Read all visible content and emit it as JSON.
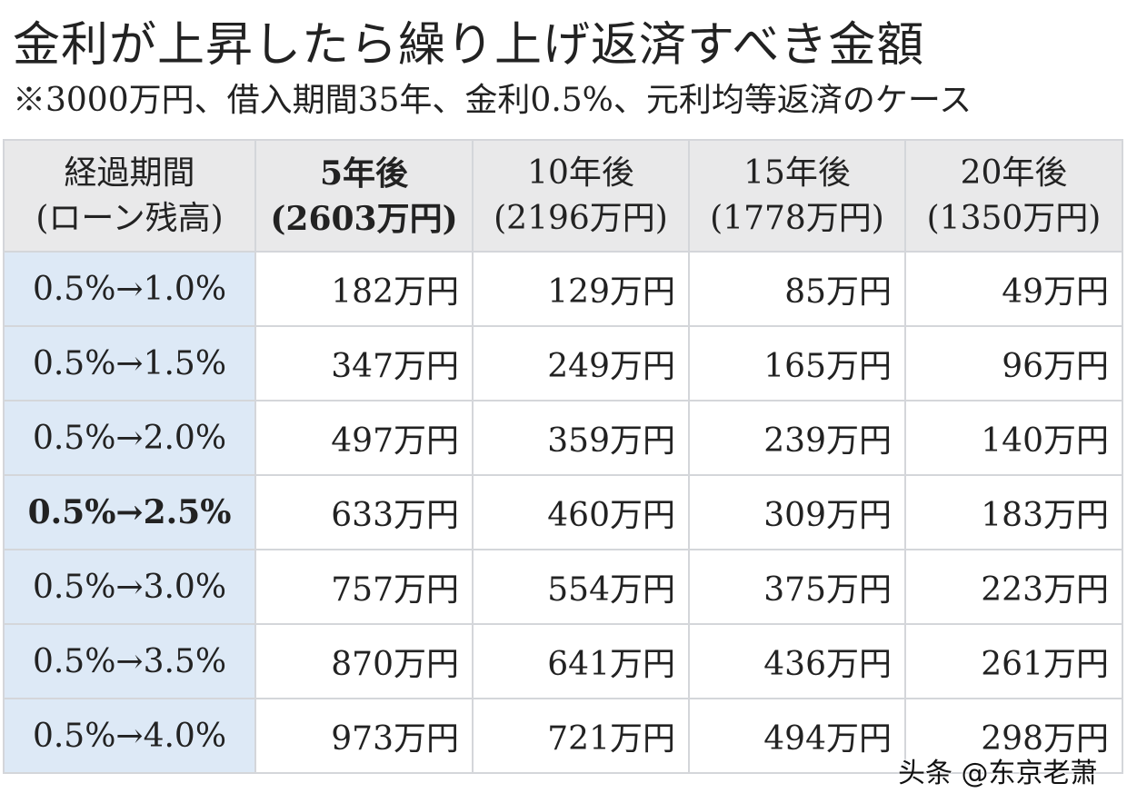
{
  "title": "金利が上昇したら繰り上げ返済すべき金額",
  "subtitle": "※3000万円、借入期間35年、金利0.5%、元利均等返済のケース",
  "table": {
    "header": [
      {
        "line1": "経過期間",
        "line2": "(ローン残高)"
      },
      {
        "line1": "5年後",
        "line2": "(2603万円)"
      },
      {
        "line1": "10年後",
        "line2": "(2196万円)"
      },
      {
        "line1": "15年後",
        "line2": "(1778万円)"
      },
      {
        "line1": "20年後",
        "line2": "(1350万円)"
      }
    ],
    "rows": [
      [
        "0.5%→1.0%",
        "182万円",
        "129万円",
        "85万円",
        "49万円"
      ],
      [
        "0.5%→1.5%",
        "347万円",
        "249万円",
        "165万円",
        "96万円"
      ],
      [
        "0.5%→2.0%",
        "497万円",
        "359万円",
        "239万円",
        "140万円"
      ],
      [
        "0.5%→2.5%",
        "633万円",
        "460万円",
        "309万円",
        "183万円"
      ],
      [
        "0.5%→3.0%",
        "757万円",
        "554万円",
        "375万円",
        "223万円"
      ],
      [
        "0.5%→3.5%",
        "870万円",
        "641万円",
        "436万円",
        "261万円"
      ],
      [
        "0.5%→4.0%",
        "973万円",
        "721万円",
        "494万円",
        "298万円"
      ]
    ]
  },
  "watermark": "头条 @东京老萧",
  "colors": {
    "header_bg": "#e9e9ea",
    "rate_column_bg": "#dde9f6",
    "border": "#d4d6da"
  }
}
